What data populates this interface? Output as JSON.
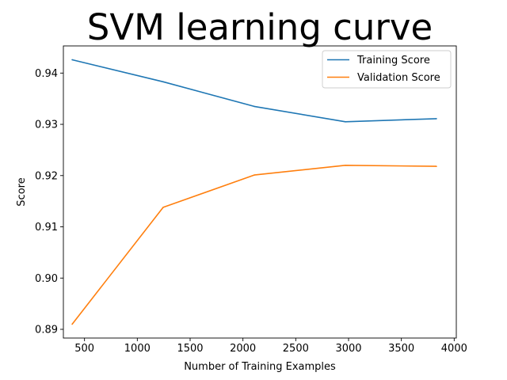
{
  "chart_data": {
    "type": "line",
    "title": "SVM learning curve",
    "xlabel": "Number of Training Examples",
    "ylabel": "Score",
    "xlim": [
      300,
      4020
    ],
    "ylim": [
      0.8883,
      0.9453
    ],
    "xticks": [
      500,
      1000,
      1500,
      2000,
      2500,
      3000,
      3500,
      4000
    ],
    "xtick_labels": [
      "500",
      "1000",
      "1500",
      "2000",
      "2500",
      "3000",
      "3500",
      "4000"
    ],
    "yticks": [
      0.89,
      0.9,
      0.91,
      0.92,
      0.93,
      0.94
    ],
    "ytick_labels": [
      "0.89",
      "0.90",
      "0.91",
      "0.92",
      "0.93",
      "0.94"
    ],
    "grid": false,
    "legend_position": "top-right",
    "x": [
      383,
      1245,
      2107,
      2970,
      3832
    ],
    "series": [
      {
        "name": "Training Score",
        "color": "#1f77b4",
        "values": [
          0.9426,
          0.9383,
          0.9335,
          0.9305,
          0.9311
        ]
      },
      {
        "name": "Validation Score",
        "color": "#ff7f0e",
        "values": [
          0.891,
          0.9138,
          0.9201,
          0.922,
          0.9218
        ]
      }
    ]
  }
}
